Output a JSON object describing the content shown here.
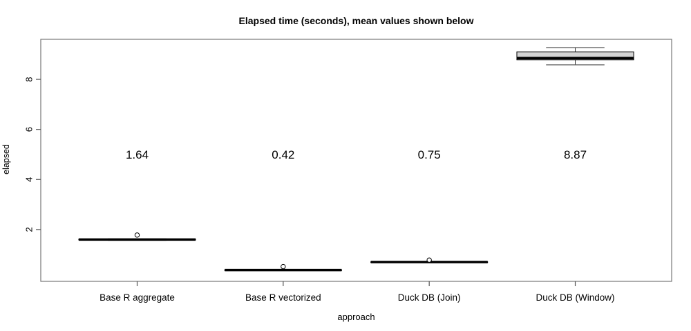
{
  "chart_data": {
    "type": "boxplot",
    "title": "Elapsed time (seconds), mean values shown below",
    "xlabel": "approach",
    "ylabel": "elapsed",
    "ylim": [
      -0.07,
      9.6
    ],
    "yticks": [
      2,
      4,
      6,
      8
    ],
    "grid": false,
    "categories": [
      "Base R aggregate",
      "Base R vectorized",
      "Duck DB (Join)",
      "Duck DB (Window)"
    ],
    "series": [
      {
        "name": "Base R aggregate",
        "whislo": 1.57,
        "q1": 1.585,
        "med": 1.6,
        "q3": 1.615,
        "whishi": 1.63,
        "outliers": [
          1.78
        ],
        "mean": 1.64,
        "mean_label": "1.64"
      },
      {
        "name": "Base R vectorized",
        "whislo": 0.36,
        "q1": 0.37,
        "med": 0.38,
        "q3": 0.39,
        "whishi": 0.4,
        "outliers": [
          0.52
        ],
        "mean": 0.42,
        "mean_label": "0.42"
      },
      {
        "name": "Duck DB (Join)",
        "whislo": 0.68,
        "q1": 0.69,
        "med": 0.7,
        "q3": 0.71,
        "whishi": 0.72,
        "outliers": [
          0.78
        ],
        "mean": 0.75,
        "mean_label": "0.75"
      },
      {
        "name": "Duck DB (Window)",
        "whislo": 8.58,
        "q1": 8.78,
        "med": 8.85,
        "q3": 9.1,
        "whishi": 9.27,
        "outliers": [],
        "mean": 8.87,
        "mean_label": "8.87"
      }
    ],
    "mean_label_value_y": 5.0,
    "colors": {
      "box_fill": "#d3d3d3",
      "box_stroke": "#000000",
      "median": "#000000",
      "whisker": "#555555",
      "frame": "#777777",
      "tick": "#555555",
      "text": "#000000"
    }
  }
}
